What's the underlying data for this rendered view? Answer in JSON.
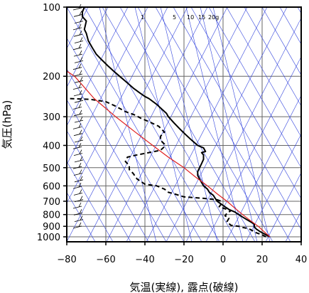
{
  "chart_data": {
    "type": "line",
    "title": "",
    "xlabel": "気温(実線), 露点(破線)",
    "ylabel": "気圧(hPa)",
    "x_ticks": [
      -80,
      -60,
      -40,
      -20,
      0,
      20,
      40
    ],
    "y_ticks": [
      100,
      200,
      300,
      400,
      500,
      600,
      700,
      800,
      900,
      1000
    ],
    "xlim": [
      -80,
      40
    ],
    "ylim": [
      1050,
      100
    ],
    "y_scale": "log",
    "grid": true,
    "mixing_ratio_labels": [
      "1",
      "5",
      "10",
      "15",
      "20g"
    ],
    "series": [
      {
        "kind": "temperature",
        "line_style": "solid",
        "color": "#000000",
        "points": [
          [
            24,
            1000
          ],
          [
            22,
            980
          ],
          [
            19,
            950
          ],
          [
            17,
            925
          ],
          [
            16,
            905
          ],
          [
            16,
            880
          ],
          [
            14,
            860
          ],
          [
            12,
            840
          ],
          [
            10,
            820
          ],
          [
            8,
            800
          ],
          [
            6,
            780
          ],
          [
            3,
            760
          ],
          [
            1,
            740
          ],
          [
            -1,
            720
          ],
          [
            -3,
            700
          ],
          [
            -4,
            680
          ],
          [
            -5,
            660
          ],
          [
            -7,
            640
          ],
          [
            -8,
            620
          ],
          [
            -10,
            600
          ],
          [
            -11,
            580
          ],
          [
            -12,
            560
          ],
          [
            -13,
            540
          ],
          [
            -13,
            520
          ],
          [
            -12,
            500
          ],
          [
            -11,
            480
          ],
          [
            -10,
            460
          ],
          [
            -10,
            440
          ],
          [
            -11,
            430
          ],
          [
            -9,
            425
          ],
          [
            -10,
            410
          ],
          [
            -13,
            400
          ],
          [
            -16,
            380
          ],
          [
            -19,
            360
          ],
          [
            -22,
            340
          ],
          [
            -25,
            320
          ],
          [
            -28,
            300
          ],
          [
            -29,
            290
          ],
          [
            -31,
            280
          ],
          [
            -34,
            265
          ],
          [
            -38,
            250
          ],
          [
            -40,
            245
          ],
          [
            -43,
            235
          ],
          [
            -46,
            225
          ],
          [
            -50,
            210
          ],
          [
            -53,
            200
          ],
          [
            -56,
            190
          ],
          [
            -59,
            180
          ],
          [
            -62,
            170
          ],
          [
            -65,
            160
          ],
          [
            -67,
            150
          ],
          [
            -69,
            140
          ],
          [
            -70,
            130
          ],
          [
            -71,
            125
          ],
          [
            -70,
            115
          ],
          [
            -72,
            110
          ],
          [
            -72,
            105
          ],
          [
            -71,
            100
          ]
        ]
      },
      {
        "kind": "dewpoint",
        "line_style": "dashed",
        "color": "#000000",
        "points": [
          [
            22,
            1000
          ],
          [
            20,
            980
          ],
          [
            17,
            960
          ],
          [
            15,
            940
          ],
          [
            13,
            920
          ],
          [
            10,
            910
          ],
          [
            8,
            900
          ],
          [
            4,
            890
          ],
          [
            2,
            860
          ],
          [
            3,
            830
          ],
          [
            1,
            810
          ],
          [
            2,
            790
          ],
          [
            4,
            770
          ],
          [
            1,
            755
          ],
          [
            -2,
            740
          ],
          [
            -1,
            720
          ],
          [
            -1,
            700
          ],
          [
            -3,
            690
          ],
          [
            -10,
            680
          ],
          [
            -20,
            670
          ],
          [
            -25,
            650
          ],
          [
            -28,
            640
          ],
          [
            -30,
            620
          ],
          [
            -34,
            600
          ],
          [
            -40,
            590
          ],
          [
            -44,
            560
          ],
          [
            -46,
            530
          ],
          [
            -48,
            510
          ],
          [
            -48,
            490
          ],
          [
            -50,
            470
          ],
          [
            -49,
            450
          ],
          [
            -44,
            440
          ],
          [
            -38,
            430
          ],
          [
            -32,
            420
          ],
          [
            -30,
            405
          ],
          [
            -30,
            395
          ],
          [
            -32,
            380
          ],
          [
            -32,
            365
          ],
          [
            -30,
            350
          ],
          [
            -33,
            330
          ],
          [
            -38,
            315
          ],
          [
            -42,
            305
          ],
          [
            -45,
            295
          ],
          [
            -50,
            285
          ],
          [
            -55,
            270
          ],
          [
            -60,
            258
          ],
          [
            -68,
            252
          ],
          [
            -80,
            250
          ]
        ]
      },
      {
        "kind": "parcel",
        "line_style": "solid",
        "color": "#e02020",
        "points": [
          [
            24,
            1000
          ],
          [
            21,
            950
          ],
          [
            18,
            900
          ],
          [
            14,
            850
          ],
          [
            10,
            800
          ],
          [
            6,
            750
          ],
          [
            2,
            700
          ],
          [
            -3,
            650
          ],
          [
            -8,
            600
          ],
          [
            -14,
            550
          ],
          [
            -20,
            500
          ],
          [
            -28,
            450
          ],
          [
            -36,
            400
          ],
          [
            -45,
            350
          ],
          [
            -55,
            300
          ],
          [
            -66,
            250
          ],
          [
            -76,
            200
          ],
          [
            -80,
            190
          ]
        ]
      }
    ]
  }
}
